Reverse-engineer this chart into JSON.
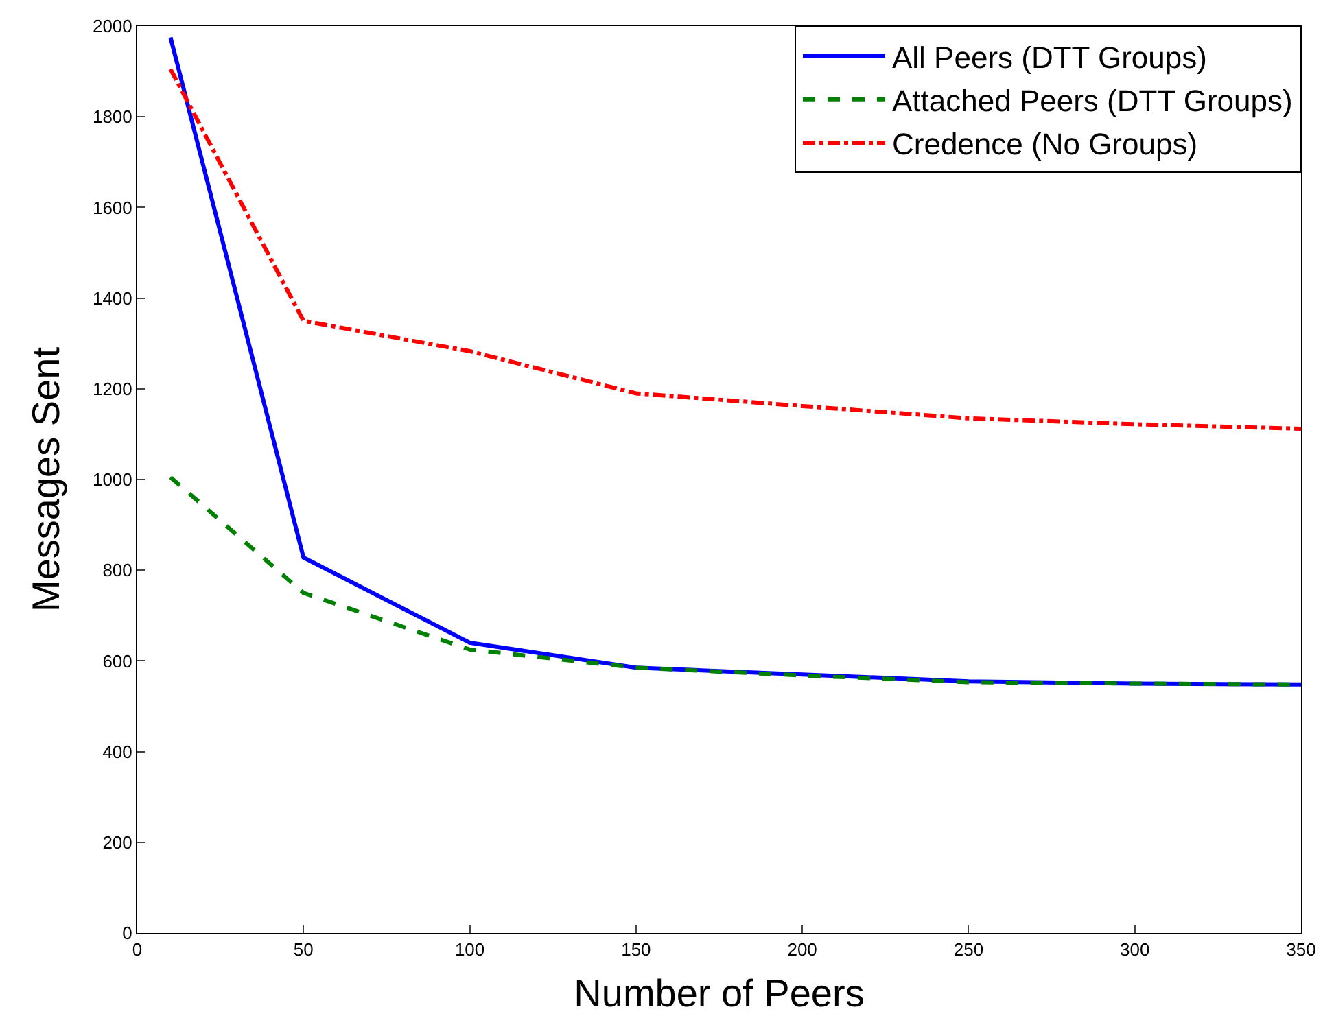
{
  "chart_data": {
    "type": "line",
    "xlabel": "Number of Peers",
    "ylabel": "Messages Sent",
    "x": [
      10,
      50,
      100,
      150,
      200,
      250,
      300,
      350
    ],
    "series": [
      {
        "name": "All Peers (DTT Groups)",
        "color": "#0000ff",
        "line_style": "solid",
        "values": [
          1975,
          828,
          640,
          585,
          570,
          555,
          550,
          548
        ]
      },
      {
        "name": "Attached Peers (DTT Groups)",
        "color": "#008000",
        "line_style": "dashed",
        "values": [
          1005,
          750,
          625,
          585,
          568,
          553,
          550,
          548
        ]
      },
      {
        "name": "Credence (No Groups)",
        "color": "#ff0000",
        "line_style": "dashdot",
        "values": [
          1905,
          1350,
          1283,
          1190,
          1162,
          1135,
          1122,
          1112
        ]
      }
    ],
    "xlim": [
      0,
      350
    ],
    "xticks": [
      0,
      50,
      100,
      150,
      200,
      250,
      300,
      350
    ],
    "ylim": [
      0,
      2000
    ],
    "yticks": [
      0,
      200,
      400,
      600,
      800,
      1000,
      1200,
      1400,
      1600,
      1800,
      2000
    ],
    "legend": "top right",
    "marker": "none"
  }
}
